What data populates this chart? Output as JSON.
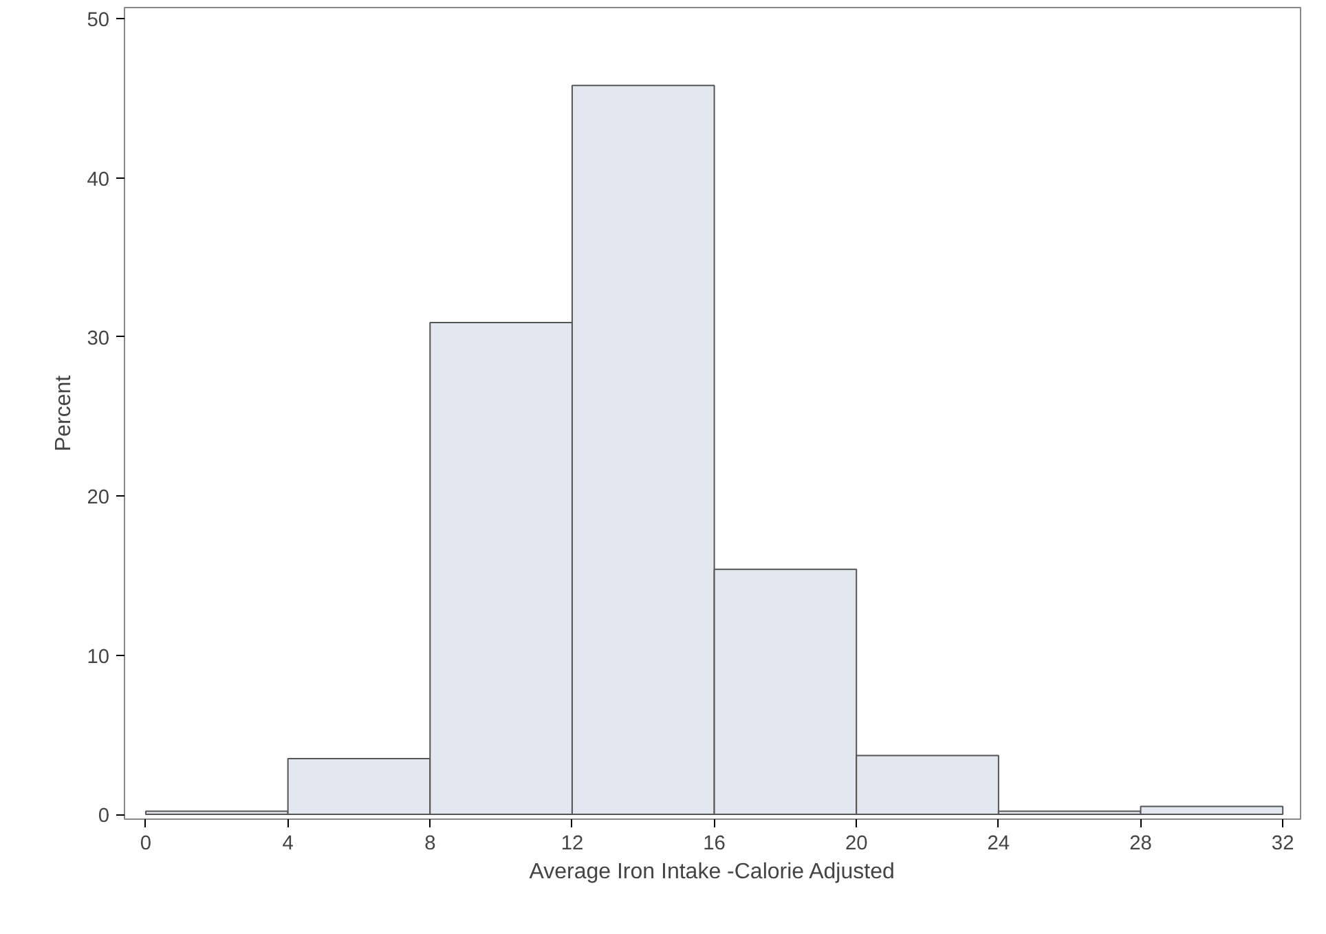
{
  "chart_data": {
    "type": "histogram",
    "xlabel": "Average Iron Intake -Calorie Adjusted",
    "ylabel": "Percent",
    "bins": [
      0,
      4,
      8,
      12,
      16,
      20,
      24,
      28,
      32
    ],
    "values": [
      0.2,
      3.5,
      30.9,
      45.8,
      15.4,
      3.7,
      0.2,
      0.5
    ],
    "color": "#e3e7f0",
    "xlim": [
      -0.6,
      32.5
    ],
    "ylim": [
      -0.3,
      50.7
    ],
    "xticks": [
      0,
      4,
      8,
      12,
      16,
      20,
      24,
      28,
      32
    ],
    "yticks": [
      0,
      10,
      20,
      30,
      40,
      50
    ],
    "grid": false
  }
}
